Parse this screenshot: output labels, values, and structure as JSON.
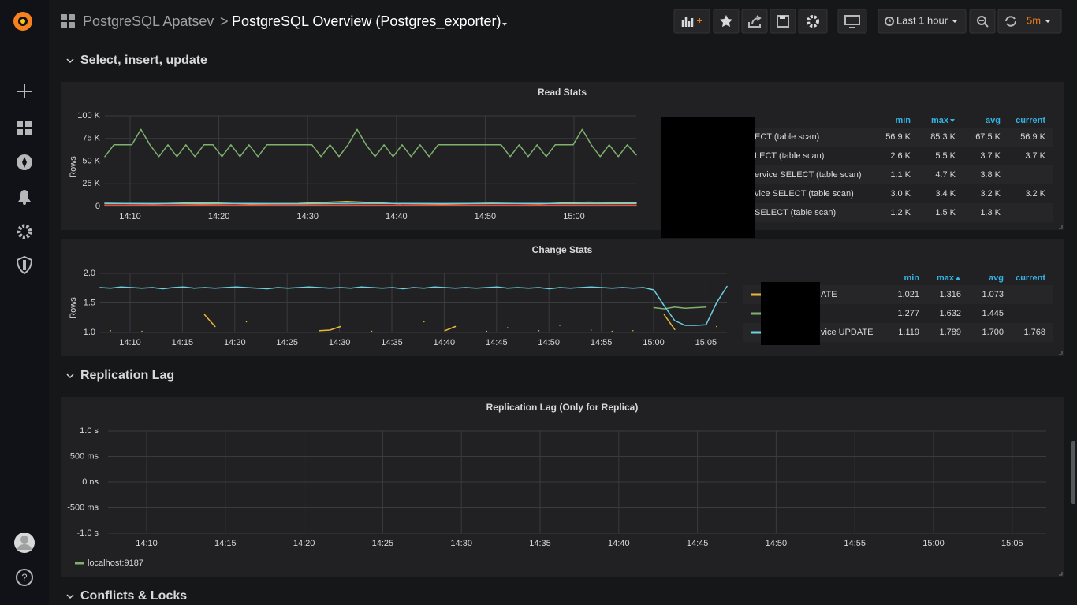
{
  "header": {
    "folder": "PostgreSQL Apatsev",
    "separator": ">",
    "title": "PostgreSQL Overview (Postgres_exporter)",
    "time_range": "Last 1 hour",
    "refresh": "5m"
  },
  "rows": [
    {
      "title": "Select, insert, update"
    },
    {
      "title": "Replication Lag"
    },
    {
      "title": "Conflicts & Locks"
    }
  ],
  "panels": [
    {
      "title": "Read Stats",
      "type": "line",
      "y_label": "Rows",
      "ylim": [
        0,
        100000
      ],
      "yticks": [
        0,
        {
          "value": 25000,
          "label": "25 K"
        },
        {
          "value": 50000,
          "label": "50 K"
        },
        {
          "value": 75000,
          "label": "75 K"
        },
        {
          "value": 100000,
          "label": "100 K"
        }
      ],
      "xticks": [
        "14:10",
        "14:20",
        "14:30",
        "14:40",
        "14:50",
        "15:00"
      ],
      "legend_columns": [
        "min",
        "max",
        "avg",
        "current"
      ],
      "series": [
        {
          "name": "ECT (table scan)",
          "color": "#7eb26d",
          "stats": [
            "56.9 K",
            "85.3 K",
            "67.5 K",
            "56.9 K"
          ],
          "values": [
            55000,
            68000,
            68000,
            68000,
            85000,
            68000,
            55000,
            68000,
            55000,
            68000,
            55000,
            68000,
            68000,
            55000,
            68000,
            55000,
            68000,
            55000,
            68000,
            68000,
            68000,
            68000,
            68000,
            68000,
            55000,
            68000,
            55000,
            68000,
            85000,
            68000,
            55000,
            68000,
            55000,
            68000,
            55000,
            68000,
            55000,
            68000,
            68000,
            68000,
            68000,
            68000,
            68000,
            68000,
            68000,
            55000,
            68000,
            55000,
            68000,
            55000,
            68000,
            68000,
            68000,
            85000,
            68000,
            55000,
            68000,
            55000,
            68000,
            56900
          ]
        },
        {
          "name": "LECT (table scan)",
          "color": "#eab839",
          "stats": [
            "2.6 K",
            "5.5 K",
            "3.7 K",
            "3.7 K"
          ],
          "values": [
            3500,
            3000,
            4200,
            2800,
            3300,
            5500,
            3100,
            2900,
            3600,
            3000,
            4700,
            3700
          ]
        },
        {
          "name": "ervice SELECT (table scan)",
          "color": "#ef843c",
          "stats": [
            "1.1 K",
            "4.7 K",
            "3.8 K"
          ],
          "values": [
            1500,
            1200,
            1800,
            1400,
            1300,
            1600,
            1200,
            1500,
            1400,
            1300,
            1200,
            1300
          ]
        },
        {
          "name": "vice SELECT (table scan)",
          "color": "#6ed0e0",
          "stats": [
            "3.0 K",
            "3.4 K",
            "3.2 K",
            "3.2 K"
          ],
          "values": [
            3200,
            3100,
            3300,
            3200,
            3000,
            3400,
            3200,
            3100,
            3300,
            3200,
            3100,
            3200
          ]
        },
        {
          "name": "SELECT (table scan)",
          "color": "#e24d42",
          "stats": [
            "1.2 K",
            "1.5 K",
            "1.3 K"
          ],
          "values": [
            1300,
            1400,
            1200,
            1500,
            1300,
            1200,
            1400,
            1300,
            1200,
            1500,
            1300,
            1400
          ]
        }
      ]
    },
    {
      "title": "Change Stats",
      "type": "line",
      "y_label": "Rows",
      "ylim": [
        1,
        2
      ],
      "yticks": [
        {
          "value": 1,
          "label": "1.0"
        },
        1.5,
        {
          "value": 2,
          "label": "2.0"
        }
      ],
      "xticks": [
        "14:10",
        "14:15",
        "14:20",
        "14:25",
        "14:30",
        "14:35",
        "14:40",
        "14:45",
        "14:50",
        "14:55",
        "15:00",
        "15:05"
      ],
      "legend_columns": [
        "min",
        "max",
        "avg",
        "current"
      ],
      "series": [
        {
          "name": "ATE",
          "color": "#eab839",
          "stats": [
            "1.021",
            "1.316",
            "1.073"
          ],
          "values": [
            null,
            1.03,
            null,
            null,
            1.02,
            null,
            null,
            null,
            null,
            null,
            1.3,
            1.1,
            null,
            null,
            1.18,
            null,
            null,
            null,
            null,
            null,
            null,
            1.03,
            1.04,
            1.1,
            null,
            null,
            1.02,
            null,
            null,
            null,
            null,
            1.18,
            null,
            1.03,
            1.1,
            null,
            null,
            1.02,
            null,
            1.08,
            null,
            null,
            1.03,
            null,
            1.12,
            null,
            null,
            1.04,
            null,
            1.02,
            null,
            1.03,
            null,
            null,
            1.3,
            1.05,
            null,
            null,
            null,
            1.1,
            null
          ]
        },
        {
          "name": null,
          "color": "#7eb26d",
          "stats": [
            "1.277",
            "1.632",
            "1.445"
          ],
          "values": [
            null,
            null,
            null,
            null,
            null,
            null,
            null,
            null,
            null,
            null,
            null,
            null,
            null,
            null,
            null,
            null,
            null,
            null,
            null,
            null,
            null,
            null,
            null,
            null,
            null,
            null,
            null,
            null,
            null,
            null,
            null,
            null,
            null,
            null,
            null,
            null,
            null,
            null,
            null,
            null,
            null,
            null,
            null,
            null,
            null,
            null,
            null,
            null,
            null,
            null,
            null,
            null,
            null,
            1.42,
            1.4,
            1.43,
            1.41,
            1.42,
            1.43,
            null,
            null
          ]
        },
        {
          "name": "vice UPDATE",
          "color": "#6ed0e0",
          "stats": [
            "1.119",
            "1.789",
            "1.700",
            "1.768"
          ],
          "values": [
            1.76,
            1.75,
            1.77,
            1.76,
            1.75,
            1.76,
            1.74,
            1.76,
            1.77,
            1.75,
            1.76,
            1.75,
            1.76,
            1.77,
            1.76,
            1.75,
            1.74,
            1.76,
            1.75,
            1.76,
            1.77,
            1.76,
            1.75,
            1.76,
            1.75,
            1.77,
            1.76,
            1.75,
            1.76,
            1.74,
            1.76,
            1.75,
            1.77,
            1.76,
            1.75,
            1.76,
            1.75,
            1.76,
            1.77,
            1.75,
            1.76,
            1.75,
            1.76,
            1.74,
            1.76,
            1.75,
            1.76,
            1.77,
            1.76,
            1.75,
            1.76,
            1.75,
            1.76,
            1.72,
            1.45,
            1.2,
            1.12,
            1.12,
            1.13,
            1.5,
            1.78
          ]
        }
      ]
    },
    {
      "title": "Replication Lag (Only for Replica)",
      "type": "line",
      "ylim": [
        -1,
        1
      ],
      "yticks": [
        {
          "value": -1,
          "label": "-1.0 s"
        },
        {
          "value": -0.5,
          "label": "-500 ms"
        },
        {
          "value": 0,
          "label": "0 ns"
        },
        {
          "value": 0.5,
          "label": "500 ms"
        },
        {
          "value": 1,
          "label": "1.0 s"
        }
      ],
      "xticks": [
        "14:10",
        "14:15",
        "14:20",
        "14:25",
        "14:30",
        "14:35",
        "14:40",
        "14:45",
        "14:50",
        "14:55",
        "15:00",
        "15:05"
      ],
      "series": [
        {
          "name": "localhost:9187",
          "color": "#7eb26d",
          "values": []
        }
      ]
    }
  ]
}
